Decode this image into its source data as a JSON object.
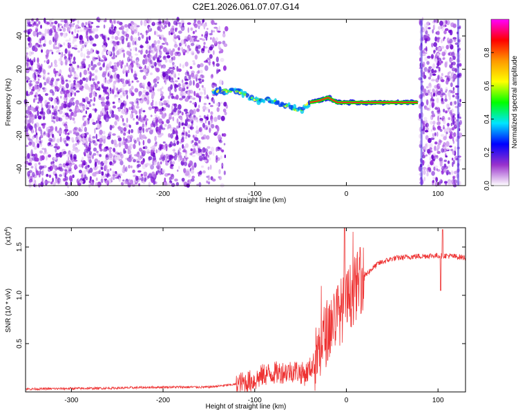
{
  "title": "C2E1.2026.061.07.07.G14",
  "chart_data": [
    {
      "type": "heatmap",
      "xlabel": "Height of straight line (km)",
      "ylabel": "Frequency (Hz)",
      "xlim": [
        -350,
        130
      ],
      "ylim": [
        -50,
        50
      ],
      "xticks": [
        -300,
        -200,
        -100,
        0,
        100
      ],
      "yticks": [
        -40,
        -20,
        0,
        20,
        40
      ],
      "colorbar": {
        "label": "Normalized spectral amplitude",
        "range": [
          0,
          1
        ],
        "ticks": [
          "0.0",
          "0.2",
          "0.4",
          "0.6",
          "0.8"
        ],
        "tick_values": [
          0.0,
          0.2,
          0.4,
          0.6,
          0.8
        ],
        "colors": [
          "#ffffff",
          "#9932cc",
          "#0000ff",
          "#00e5ff",
          "#00ff00",
          "#ffff00",
          "#ff9900",
          "#ff0000",
          "#ff00ff"
        ]
      },
      "noise_regions_x": [
        [
          -350,
          -130
        ],
        [
          80,
          125
        ]
      ],
      "signal_track": [
        {
          "x": -145,
          "y": 7
        },
        {
          "x": -120,
          "y": 7
        },
        {
          "x": -110,
          "y": 5
        },
        {
          "x": -100,
          "y": 1
        },
        {
          "x": -85,
          "y": 2
        },
        {
          "x": -75,
          "y": 0
        },
        {
          "x": -60,
          "y": -3
        },
        {
          "x": -50,
          "y": -5
        },
        {
          "x": -40,
          "y": 0
        },
        {
          "x": -30,
          "y": 1
        },
        {
          "x": -20,
          "y": 3
        },
        {
          "x": -10,
          "y": 0
        },
        {
          "x": 0,
          "y": 0
        },
        {
          "x": 40,
          "y": 0
        },
        {
          "x": 78,
          "y": 0
        }
      ]
    },
    {
      "type": "line",
      "xlabel": "Height of straight line (km)",
      "ylabel": "SNR (10 * v/v)",
      "yscale_label": "(x10",
      "yscale_exp": "4",
      "xlim": [
        -350,
        130
      ],
      "ylim": [
        0,
        1.7
      ],
      "xticks": [
        -300,
        -200,
        -100,
        0,
        100
      ],
      "yticks": [
        "0.5",
        "1.0",
        "1.5"
      ],
      "ytick_values": [
        0.5,
        1.0,
        1.5
      ],
      "series": [
        {
          "color": "#ee3333",
          "points": [
            {
              "x": -350,
              "y": 0.03
            },
            {
              "x": -250,
              "y": 0.04
            },
            {
              "x": -200,
              "y": 0.05
            },
            {
              "x": -150,
              "y": 0.05
            },
            {
              "x": -120,
              "y": 0.08
            },
            {
              "x": -100,
              "y": 0.12
            },
            {
              "x": -90,
              "y": 0.18
            },
            {
              "x": -75,
              "y": 0.2
            },
            {
              "x": -55,
              "y": 0.22
            },
            {
              "x": -45,
              "y": 0.18
            },
            {
              "x": -35,
              "y": 0.3
            },
            {
              "x": -25,
              "y": 0.55
            },
            {
              "x": -15,
              "y": 0.75
            },
            {
              "x": -5,
              "y": 0.85
            },
            {
              "x": 5,
              "y": 1.0
            },
            {
              "x": 15,
              "y": 1.15
            },
            {
              "x": 25,
              "y": 1.25
            },
            {
              "x": 35,
              "y": 1.33
            },
            {
              "x": 50,
              "y": 1.38
            },
            {
              "x": 70,
              "y": 1.4
            },
            {
              "x": 90,
              "y": 1.41
            },
            {
              "x": 110,
              "y": 1.41
            },
            {
              "x": 130,
              "y": 1.39
            }
          ]
        }
      ]
    }
  ]
}
